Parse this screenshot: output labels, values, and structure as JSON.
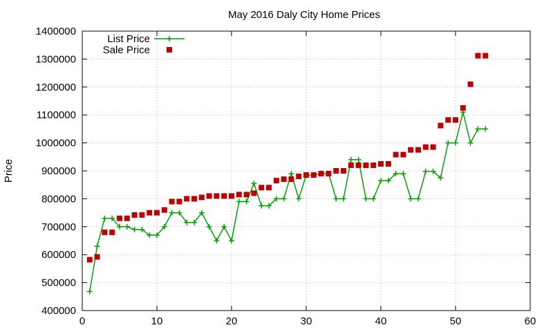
{
  "chart_data": {
    "type": "line",
    "title": "May 2016 Daly City Home Prices",
    "xlabel": "",
    "ylabel": "Price",
    "xlim": [
      0,
      60
    ],
    "ylim": [
      400000,
      1400000
    ],
    "xticks": [
      0,
      10,
      20,
      30,
      40,
      50,
      60
    ],
    "yticks": [
      400000,
      500000,
      600000,
      700000,
      800000,
      900000,
      1000000,
      1100000,
      1200000,
      1300000,
      1400000
    ],
    "xtick_labels": [
      "0",
      "10",
      "20",
      "30",
      "40",
      "50",
      "60"
    ],
    "ytick_labels": [
      "400000",
      "500000",
      "600000",
      "700000",
      "800000",
      "900000",
      "1000000",
      "1100000",
      "1200000",
      "1300000",
      "1400000"
    ],
    "grid": true,
    "legend_position": "top-left",
    "x": [
      1,
      2,
      3,
      4,
      5,
      6,
      7,
      8,
      9,
      10,
      11,
      12,
      13,
      14,
      15,
      16,
      17,
      18,
      19,
      20,
      21,
      22,
      23,
      24,
      25,
      26,
      27,
      28,
      29,
      30,
      31,
      32,
      33,
      34,
      35,
      36,
      37,
      38,
      39,
      40,
      41,
      42,
      43,
      44,
      45,
      46,
      47,
      48,
      49,
      50,
      51,
      52,
      53,
      54
    ],
    "series": [
      {
        "name": "List Price",
        "style": "line-points",
        "color": "#00a000",
        "values": [
          468000,
          630000,
          730000,
          730000,
          700000,
          700000,
          690000,
          690000,
          670000,
          670000,
          700000,
          750000,
          750000,
          715000,
          715000,
          750000,
          700000,
          650000,
          700000,
          650000,
          790000,
          790000,
          855000,
          775000,
          775000,
          800000,
          800000,
          890000,
          800000,
          885000,
          885000,
          890000,
          890000,
          800000,
          800000,
          940000,
          940000,
          800000,
          800000,
          865000,
          865000,
          890000,
          890000,
          800000,
          800000,
          898000,
          898000,
          875000,
          1000000,
          1000000,
          1110000,
          1000000,
          1050000,
          1050000
        ]
      },
      {
        "name": "Sale Price",
        "style": "points",
        "color": "#c00000",
        "values": [
          582000,
          592000,
          680000,
          680000,
          730000,
          730000,
          742000,
          742000,
          750000,
          750000,
          760000,
          790000,
          790000,
          800000,
          800000,
          805000,
          810000,
          810000,
          810000,
          810000,
          815000,
          815000,
          820000,
          840000,
          840000,
          865000,
          870000,
          870000,
          880000,
          885000,
          885000,
          890000,
          890000,
          900000,
          900000,
          920000,
          920000,
          920000,
          920000,
          925000,
          925000,
          958000,
          958000,
          975000,
          975000,
          985000,
          985000,
          1062000,
          1082000,
          1082000,
          1125000,
          1210000,
          1312000,
          1312000
        ]
      }
    ]
  }
}
